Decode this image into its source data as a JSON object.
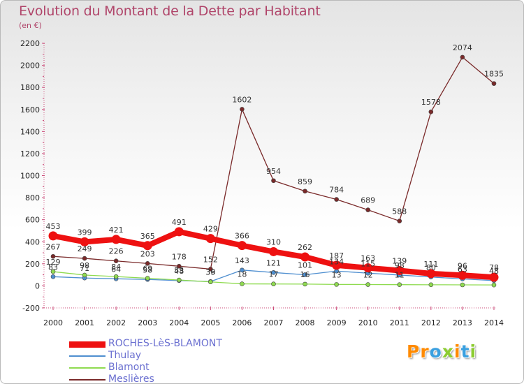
{
  "chart_data": {
    "type": "line",
    "title": "Evolution du Montant de la Dette par Habitant",
    "subtitle": "(en €)",
    "x": [
      "2000",
      "2001",
      "2002",
      "2003",
      "2004",
      "2005",
      "2006",
      "2007",
      "2008",
      "2009",
      "2010",
      "2011",
      "2012",
      "2013",
      "2014"
    ],
    "ylim": [
      -200,
      2200
    ],
    "yticks": [
      -200,
      0,
      200,
      400,
      600,
      800,
      1000,
      1200,
      1400,
      1600,
      1800,
      2000,
      2200
    ],
    "grid": false,
    "legend_position": "bottom-left",
    "series": [
      {
        "name": "ROCHES-LèS-BLAMONT",
        "color": "#ee1111",
        "values": [
          453,
          399,
          421,
          365,
          491,
          429,
          366,
          310,
          262,
          187,
          163,
          139,
          111,
          96,
          78
        ],
        "labels": [
          "453",
          "399",
          "421",
          "365",
          "491",
          "429",
          "366",
          "310",
          "262",
          "187",
          "163",
          "139",
          "111",
          "96",
          "78"
        ]
      },
      {
        "name": "Thulay",
        "color": "#4f8fd0",
        "values": [
          83,
          71,
          64,
          58,
          48,
          39,
          143,
          121,
          101,
          134,
          115,
          98,
          80,
          63,
          48
        ],
        "labels": [
          "83",
          "71",
          "64",
          "58",
          "48",
          "39",
          "143",
          "121",
          "101",
          "134",
          "115",
          "98",
          "80",
          "63",
          "48"
        ]
      },
      {
        "name": "Blamont",
        "color": "#8fdb50",
        "values": [
          129,
          98,
          84,
          69,
          53,
          36,
          18,
          17,
          16,
          13,
          12,
          11,
          10,
          9,
          8
        ],
        "labels": [
          "129",
          "98",
          "84",
          "69",
          "53",
          "36",
          "18",
          "17",
          "16",
          "13",
          "12",
          "11",
          "",
          "",
          ""
        ]
      },
      {
        "name": "Meslières",
        "color": "#7a2a2a",
        "values": [
          267,
          249,
          226,
          203,
          178,
          152,
          1602,
          954,
          859,
          784,
          689,
          588,
          1578,
          2074,
          1835
        ],
        "labels": [
          "267",
          "249",
          "226",
          "203",
          "178",
          "152",
          "1602",
          "954",
          "859",
          "784",
          "689",
          "588",
          "1578",
          "2074",
          "1835"
        ]
      }
    ]
  },
  "logo": {
    "letters": [
      {
        "t": "P",
        "color": "#ff8a00"
      },
      {
        "t": "r",
        "color": "#ff8a00"
      },
      {
        "t": "o",
        "color": "#3aa0e0"
      },
      {
        "t": "x",
        "color": "#8ccc30"
      },
      {
        "t": "i",
        "color": "#ff8a00"
      },
      {
        "t": "t",
        "color": "#3aa0e0"
      },
      {
        "t": "i",
        "color": "#8ccc30"
      }
    ]
  }
}
